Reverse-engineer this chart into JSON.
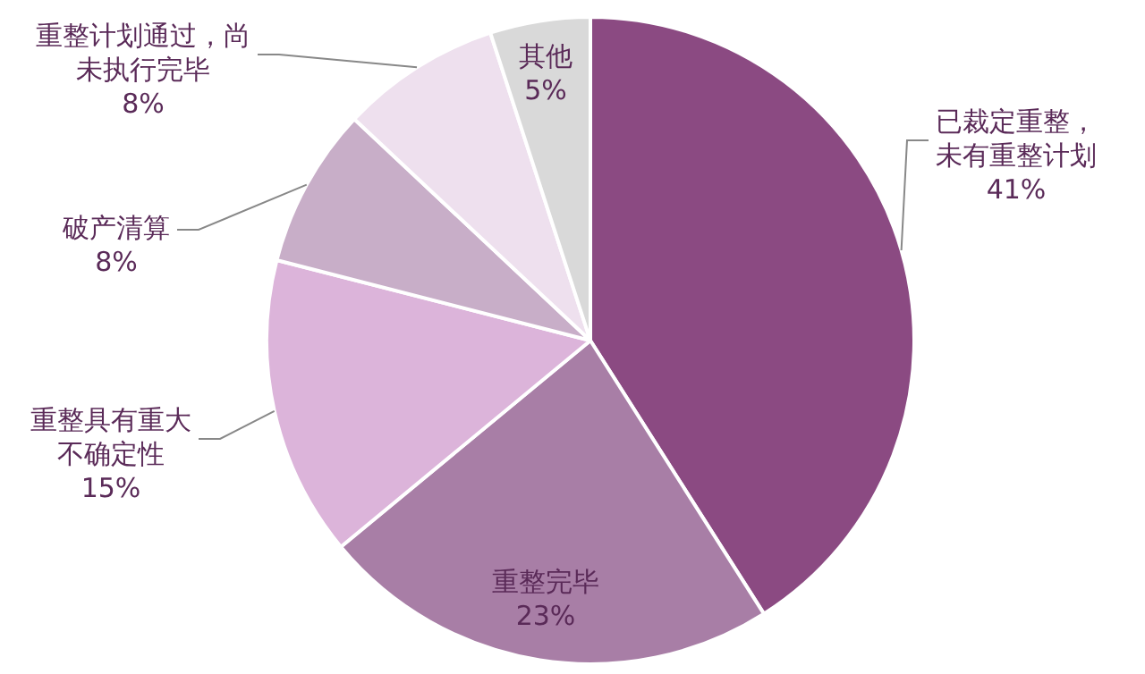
{
  "chart_data": {
    "type": "pie",
    "categories": [
      "已裁定重整，未有重整计划",
      "重整完毕",
      "重整具有重大不确定性",
      "破产清算",
      "重整计划通过，尚未执行完毕",
      "其他"
    ],
    "values": [
      41,
      23,
      15,
      8,
      8,
      5
    ],
    "colors": [
      "#8b4a82",
      "#a87ea6",
      "#dcb4da",
      "#c8aec8",
      "#eee0ee",
      "#d9d9d9"
    ],
    "value_labels": [
      "41%",
      "23%",
      "15%",
      "8%",
      "8%",
      "5%"
    ],
    "legend": false
  }
}
